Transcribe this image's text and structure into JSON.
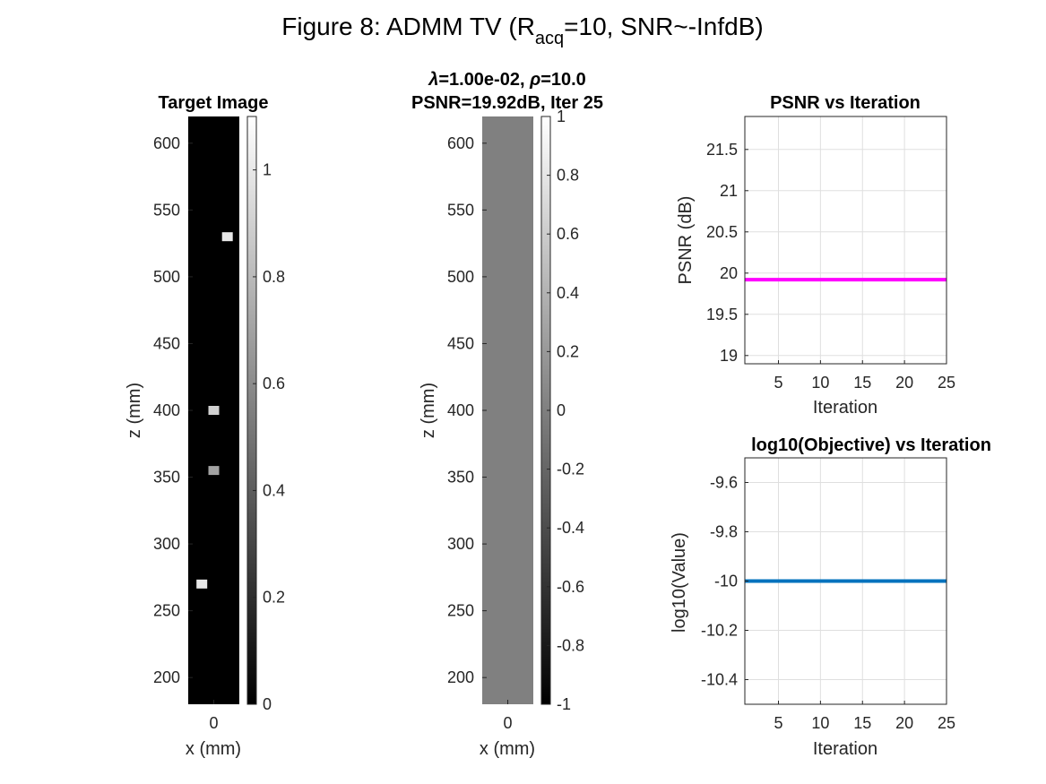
{
  "figure": {
    "title_main": "Figure 8: ADMM TV (R",
    "title_sub": "acq",
    "title_rest": "=10, SNR~-InfdB)"
  },
  "chart_data": [
    {
      "type": "heatmap",
      "title": "Target Image",
      "xlabel": "x (mm)",
      "ylabel": "z (mm)",
      "xticks": [
        0
      ],
      "yticks": [
        200,
        250,
        300,
        350,
        400,
        450,
        500,
        550,
        600
      ],
      "ylim": [
        180,
        620
      ],
      "background_value": 0,
      "points": [
        {
          "x": 0.8,
          "z": 530,
          "value": 1.0
        },
        {
          "x": 0.0,
          "z": 400,
          "value": 0.9
        },
        {
          "x": 0.0,
          "z": 355,
          "value": 0.7
        },
        {
          "x": -0.7,
          "z": 270,
          "value": 1.0
        }
      ],
      "colorbar": {
        "clim": [
          0,
          1.1
        ],
        "ticks": [
          0,
          0.2,
          0.4,
          0.6,
          0.8,
          1
        ],
        "tick_labels": [
          "0",
          "0.2",
          "0.4",
          "0.6",
          "0.8",
          "1"
        ]
      }
    },
    {
      "type": "heatmap",
      "title_line1_prefix": "λ",
      "title_line1_rest": "=1.00e-02, ",
      "title_line1_rho": "ρ",
      "title_line1_end": "=10.0",
      "title_line2": "PSNR=19.92dB, Iter 25",
      "xlabel": "x (mm)",
      "ylabel": "z (mm)",
      "xticks": [
        0
      ],
      "yticks": [
        200,
        250,
        300,
        350,
        400,
        450,
        500,
        550,
        600
      ],
      "ylim": [
        180,
        620
      ],
      "uniform_value": 0,
      "colorbar": {
        "clim": [
          -1,
          1
        ],
        "ticks": [
          -1,
          -0.8,
          -0.6,
          -0.4,
          -0.2,
          0,
          0.2,
          0.4,
          0.6,
          0.8,
          1
        ],
        "tick_labels": [
          "-1",
          "-0.8",
          "-0.6",
          "-0.4",
          "-0.2",
          "0",
          "0.2",
          "0.4",
          "0.6",
          "0.8",
          "1"
        ]
      }
    },
    {
      "type": "line",
      "title": "PSNR vs Iteration",
      "xlabel": "Iteration",
      "ylabel": "PSNR (dB)",
      "xlim": [
        1,
        25
      ],
      "ylim": [
        18.9,
        21.9
      ],
      "xticks": [
        5,
        10,
        15,
        20,
        25
      ],
      "yticks": [
        19,
        19.5,
        20,
        20.5,
        21,
        21.5
      ],
      "ytick_labels": [
        "19",
        "19.5",
        "20",
        "20.5",
        "21",
        "21.5"
      ],
      "grid": true,
      "color": "#ff00ff",
      "x": [
        1,
        25
      ],
      "y": [
        19.92,
        19.92
      ]
    },
    {
      "type": "line",
      "title": "log10(Objective) vs Iteration",
      "xlabel": "Iteration",
      "ylabel": "log10(Value)",
      "xlim": [
        1,
        25
      ],
      "ylim": [
        -10.5,
        -9.5
      ],
      "xticks": [
        5,
        10,
        15,
        20,
        25
      ],
      "yticks": [
        -10.4,
        -10.2,
        -10,
        -9.8,
        -9.6
      ],
      "ytick_labels": [
        "-10.4",
        "-10.2",
        "-10",
        "-9.8",
        "-9.6"
      ],
      "grid": true,
      "color": "#0072bd",
      "x": [
        1,
        25
      ],
      "y": [
        -10,
        -10
      ]
    }
  ]
}
